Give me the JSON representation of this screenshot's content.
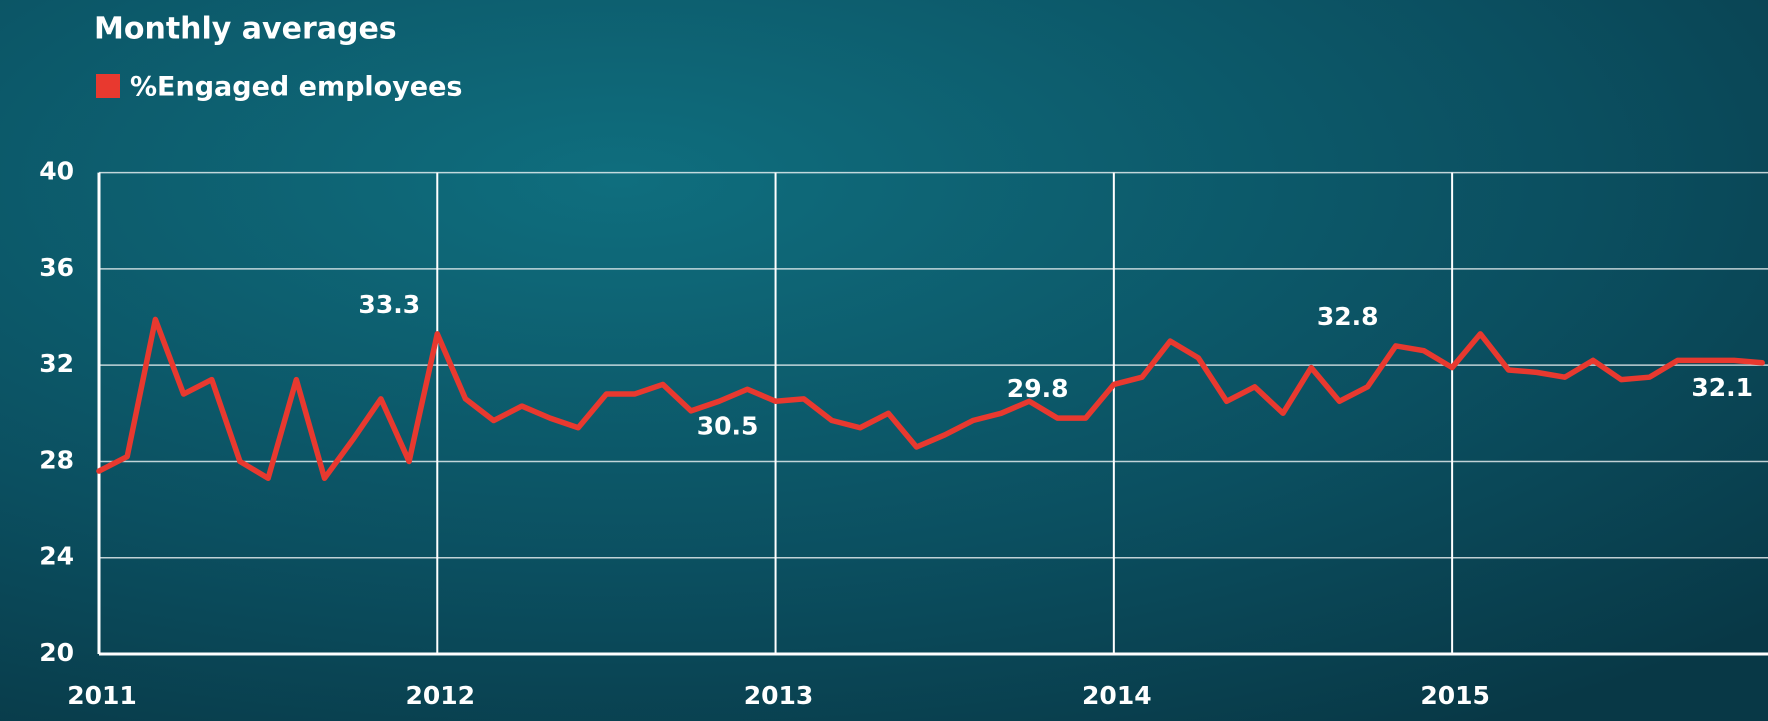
{
  "chart_data": {
    "type": "line",
    "title": "Monthly averages",
    "categories": [
      "2011",
      null,
      null,
      null,
      null,
      null,
      null,
      null,
      null,
      null,
      null,
      null,
      "2012",
      null,
      null,
      null,
      null,
      null,
      null,
      null,
      null,
      null,
      null,
      null,
      "2013",
      null,
      null,
      null,
      null,
      null,
      null,
      null,
      null,
      null,
      null,
      null,
      "2014",
      null,
      null,
      null,
      null,
      null,
      null,
      null,
      null,
      null,
      null,
      null,
      "2015",
      null,
      null,
      null,
      null,
      null,
      null,
      null,
      null,
      null,
      null,
      null
    ],
    "series": [
      {
        "name": "%Engaged employees",
        "color": "#e8392f",
        "values": [
          27.6,
          28.2,
          33.9,
          30.8,
          31.4,
          28.0,
          27.3,
          31.4,
          27.3,
          28.9,
          30.6,
          28.0,
          33.3,
          30.6,
          29.7,
          30.3,
          29.8,
          29.4,
          30.8,
          30.8,
          31.2,
          30.1,
          30.5,
          31.0,
          30.5,
          30.6,
          29.7,
          29.4,
          30.0,
          28.6,
          29.1,
          29.7,
          30.0,
          30.5,
          29.8,
          29.8,
          31.2,
          31.5,
          33.0,
          32.3,
          30.5,
          31.1,
          30.0,
          31.9,
          30.5,
          31.1,
          32.8,
          32.6,
          31.9,
          33.3,
          31.8,
          31.7,
          31.5,
          32.2,
          31.4,
          31.5,
          32.2,
          32.2,
          32.2,
          32.1
        ],
        "value_labels": [
          null,
          null,
          null,
          null,
          null,
          null,
          null,
          null,
          null,
          null,
          null,
          null,
          "33.3",
          null,
          null,
          null,
          null,
          null,
          null,
          null,
          null,
          null,
          null,
          null,
          "30.5",
          null,
          null,
          null,
          null,
          null,
          null,
          null,
          null,
          null,
          null,
          "29.8",
          null,
          null,
          null,
          null,
          null,
          null,
          null,
          null,
          null,
          null,
          "32.8",
          null,
          null,
          null,
          null,
          null,
          null,
          null,
          null,
          null,
          null,
          null,
          null,
          "32.1"
        ]
      }
    ],
    "ylim": [
      20,
      40
    ],
    "yticks": [
      20,
      24,
      28,
      32,
      36,
      40
    ],
    "grid": true
  }
}
